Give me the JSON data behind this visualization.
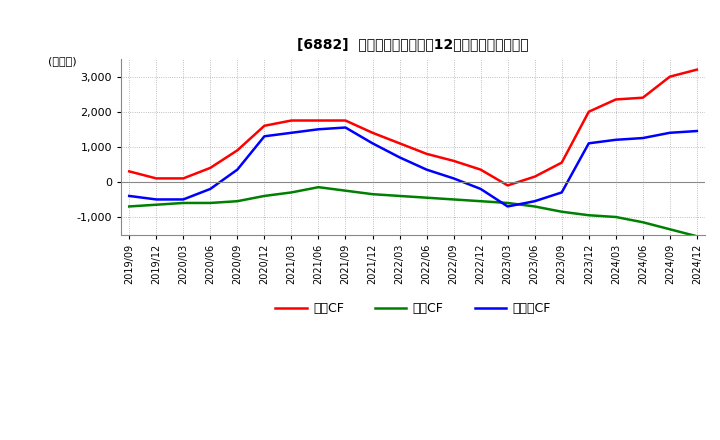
{
  "title": "[6882]  キャッシュフローの12か月移動合計の推移",
  "ylabel": "(百万円)",
  "ylim": [
    -1500,
    3500
  ],
  "yticks": [
    -1000,
    0,
    1000,
    2000,
    3000
  ],
  "dates": [
    "2019/09",
    "2019/12",
    "2020/03",
    "2020/06",
    "2020/09",
    "2020/12",
    "2021/03",
    "2021/06",
    "2021/09",
    "2021/12",
    "2022/03",
    "2022/06",
    "2022/09",
    "2022/12",
    "2023/03",
    "2023/06",
    "2023/09",
    "2023/12",
    "2024/03",
    "2024/06",
    "2024/09",
    "2024/12"
  ],
  "operating_cf": [
    300,
    100,
    100,
    400,
    900,
    1600,
    1750,
    1750,
    1750,
    1400,
    1100,
    800,
    600,
    350,
    -100,
    150,
    550,
    2000,
    2350,
    2400,
    3000,
    3200
  ],
  "investing_cf": [
    -700,
    -650,
    -600,
    -600,
    -550,
    -400,
    -300,
    -150,
    -250,
    -350,
    -400,
    -450,
    -500,
    -550,
    -600,
    -700,
    -850,
    -950,
    -1000,
    -1150,
    -1350,
    -1550
  ],
  "free_cf": [
    -400,
    -500,
    -500,
    -200,
    350,
    1300,
    1400,
    1500,
    1550,
    1100,
    700,
    350,
    100,
    -200,
    -700,
    -550,
    -300,
    1100,
    1200,
    1250,
    1400,
    1450
  ],
  "operating_color": "#ff0000",
  "investing_color": "#008000",
  "free_color": "#0000ff",
  "background_color": "#ffffff",
  "grid_color": "#aaaaaa",
  "legend_labels": [
    "営業CF",
    "投資CF",
    "フリーCF"
  ]
}
